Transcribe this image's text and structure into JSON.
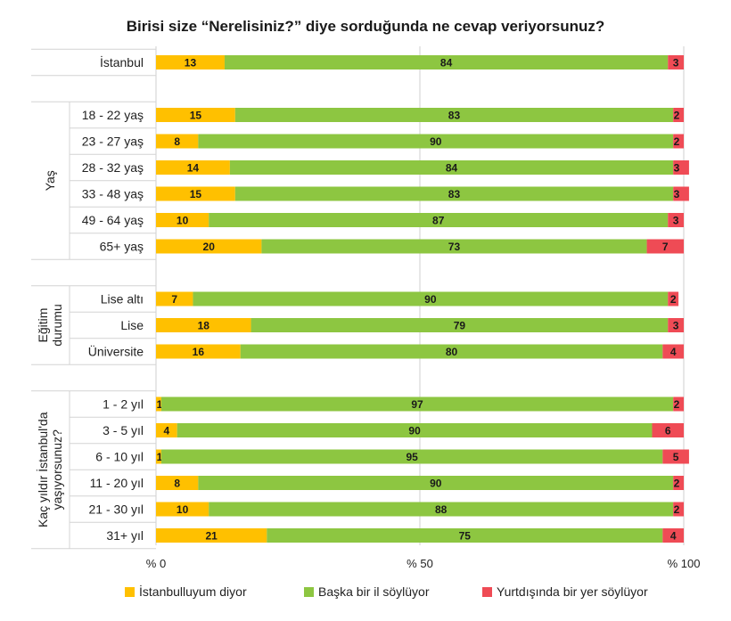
{
  "chart_data": {
    "type": "bar",
    "stacked": true,
    "orientation": "horizontal",
    "title": "Birisi size “Nerelisiniz?” diye sorduğunda ne cevap veriyorsunuz?",
    "xlim": [
      0,
      100
    ],
    "xticks": [
      "% 0",
      "% 50",
      "% 100"
    ],
    "series": [
      {
        "name": "İstanbulluyum diyor",
        "color": "#FFC000"
      },
      {
        "name": "Başka bir il söylüyor",
        "color": "#8DC641"
      },
      {
        "name": "Yurtdışında bir yer söylüyor",
        "color": "#EF4B55"
      }
    ],
    "groups": [
      {
        "label": "",
        "rows": [
          {
            "label": "İstanbul",
            "values": [
              13,
              84,
              3
            ]
          }
        ]
      },
      {
        "label": "Yaş",
        "rows": [
          {
            "label": "18 - 22 yaş",
            "values": [
              15,
              83,
              2
            ]
          },
          {
            "label": "23 - 27 yaş",
            "values": [
              8,
              90,
              2
            ]
          },
          {
            "label": "28 - 32 yaş",
            "values": [
              14,
              84,
              3
            ]
          },
          {
            "label": "33 - 48 yaş",
            "values": [
              15,
              83,
              3
            ]
          },
          {
            "label": "49 - 64 yaş",
            "values": [
              10,
              87,
              3
            ]
          },
          {
            "label": "65+ yaş",
            "values": [
              20,
              73,
              7
            ]
          }
        ]
      },
      {
        "label": "Eğitim durumu",
        "label_lines": [
          "Eğitim",
          "durumu"
        ],
        "rows": [
          {
            "label": "Lise altı",
            "values": [
              7,
              90,
              2
            ]
          },
          {
            "label": "Lise",
            "values": [
              18,
              79,
              3
            ]
          },
          {
            "label": "Üniversite",
            "values": [
              16,
              80,
              4
            ]
          }
        ]
      },
      {
        "label": "Kaç yıldır İstanbul'da yaşıyorsunuz?",
        "label_lines": [
          "Kaç yıldır İstanbul'da",
          "yaşıyorsunuz?"
        ],
        "rows": [
          {
            "label": "1 - 2 yıl",
            "values": [
              1,
              97,
              2
            ]
          },
          {
            "label": "3 - 5 yıl",
            "values": [
              4,
              90,
              6
            ]
          },
          {
            "label": "6 - 10 yıl",
            "values": [
              1,
              95,
              5
            ]
          },
          {
            "label": "11 - 20 yıl",
            "values": [
              8,
              90,
              2
            ]
          },
          {
            "label": "21 - 30 yıl",
            "values": [
              10,
              88,
              2
            ]
          },
          {
            "label": "31+ yıl",
            "values": [
              21,
              75,
              4
            ]
          }
        ]
      }
    ]
  }
}
